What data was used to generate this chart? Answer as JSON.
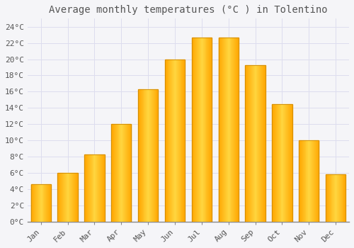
{
  "title": "Average monthly temperatures (°C ) in Tolentino",
  "months": [
    "Jan",
    "Feb",
    "Mar",
    "Apr",
    "May",
    "Jun",
    "Jul",
    "Aug",
    "Sep",
    "Oct",
    "Nov",
    "Dec"
  ],
  "values": [
    4.6,
    6.0,
    8.3,
    12.0,
    16.3,
    20.0,
    22.7,
    22.7,
    19.3,
    14.5,
    10.0,
    5.8
  ],
  "bar_color_main": "#FFA500",
  "bar_color_light": "#FFD060",
  "bar_edge_color": "#CC8800",
  "background_color": "#F5F5F8",
  "plot_bg_color": "#F5F5F8",
  "grid_color": "#DDDDEE",
  "text_color": "#555555",
  "ylim": [
    0,
    25
  ],
  "yticks": [
    0,
    2,
    4,
    6,
    8,
    10,
    12,
    14,
    16,
    18,
    20,
    22,
    24
  ],
  "title_fontsize": 10,
  "tick_fontsize": 8,
  "font_family": "monospace"
}
